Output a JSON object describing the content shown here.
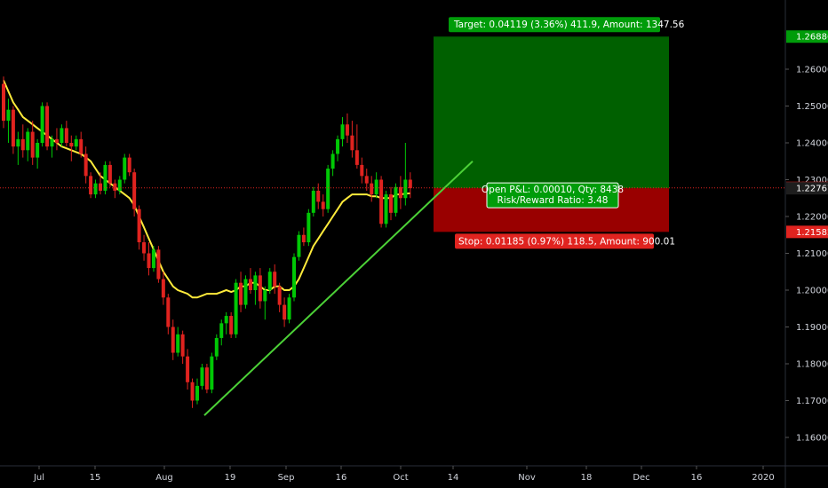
{
  "colors": {
    "background": "#000000",
    "up": "#00c805",
    "down": "#e0231f",
    "ma": "#ffeb3b",
    "trendline": "#4cd137",
    "target_zone": "#006000",
    "stop_zone": "#990000",
    "axis_text": "#d1d4dc",
    "crosshair": "#e0231f"
  },
  "price_axis": {
    "labels": [
      "1.26000",
      "1.25000",
      "1.24000",
      "1.23000",
      "1.22000",
      "1.21000",
      "1.20000",
      "1.19000",
      "1.18000",
      "1.17000",
      "1.16000"
    ],
    "tags": {
      "target": "1.26886",
      "current": "1.22777",
      "entry": "1.22767",
      "stop": "1.21582"
    }
  },
  "time_axis": {
    "labels": [
      "Jul",
      "15",
      "Aug",
      "19",
      "Sep",
      "16",
      "Oct",
      "14",
      "Nov",
      "18",
      "Dec",
      "16",
      "2020"
    ]
  },
  "position": {
    "target_label": "Target: 0.04119 (3.36%) 411.9, Amount: 1347.56",
    "stop_label": "Stop: 0.01185 (0.97%) 118.5, Amount: 900.01",
    "pnl_label": "Open P&L: 0.00010, Qty: 8438",
    "rr_label": "Risk/Reward Ratio: 3.48",
    "entry_price": 1.22767,
    "target_price": 1.26886,
    "stop_price": 1.21582
  },
  "chart_data": {
    "type": "candlestick",
    "series": [
      {
        "name": "",
        "ohlc": [
          [
            1.256,
            1.258,
            1.244,
            1.246
          ],
          [
            1.246,
            1.252,
            1.24,
            1.249
          ],
          [
            1.249,
            1.25,
            1.237,
            1.239
          ],
          [
            1.239,
            1.243,
            1.234,
            1.241
          ],
          [
            1.241,
            1.245,
            1.236,
            1.238
          ],
          [
            1.238,
            1.244,
            1.235,
            1.243
          ],
          [
            1.243,
            1.246,
            1.234,
            1.236
          ],
          [
            1.236,
            1.241,
            1.233,
            1.24
          ],
          [
            1.24,
            1.251,
            1.239,
            1.25
          ],
          [
            1.25,
            1.251,
            1.238,
            1.239
          ],
          [
            1.239,
            1.242,
            1.236,
            1.241
          ],
          [
            1.241,
            1.244,
            1.238,
            1.24
          ],
          [
            1.24,
            1.245,
            1.239,
            1.244
          ],
          [
            1.244,
            1.246,
            1.239,
            1.24
          ],
          [
            1.24,
            1.242,
            1.235,
            1.239
          ],
          [
            1.239,
            1.242,
            1.238,
            1.241
          ],
          [
            1.241,
            1.243,
            1.236,
            1.237
          ],
          [
            1.237,
            1.239,
            1.229,
            1.231
          ],
          [
            1.231,
            1.232,
            1.225,
            1.226
          ],
          [
            1.226,
            1.23,
            1.225,
            1.229
          ],
          [
            1.229,
            1.232,
            1.226,
            1.227
          ],
          [
            1.227,
            1.235,
            1.226,
            1.234
          ],
          [
            1.234,
            1.235,
            1.228,
            1.229
          ],
          [
            1.229,
            1.23,
            1.225,
            1.227
          ],
          [
            1.227,
            1.231,
            1.226,
            1.23
          ],
          [
            1.23,
            1.237,
            1.229,
            1.236
          ],
          [
            1.236,
            1.237,
            1.231,
            1.232
          ],
          [
            1.232,
            1.233,
            1.22,
            1.222
          ],
          [
            1.222,
            1.223,
            1.211,
            1.213
          ],
          [
            1.213,
            1.215,
            1.208,
            1.21
          ],
          [
            1.21,
            1.213,
            1.204,
            1.206
          ],
          [
            1.206,
            1.212,
            1.205,
            1.211
          ],
          [
            1.211,
            1.212,
            1.202,
            1.203
          ],
          [
            1.203,
            1.205,
            1.196,
            1.198
          ],
          [
            1.198,
            1.199,
            1.188,
            1.19
          ],
          [
            1.19,
            1.192,
            1.181,
            1.183
          ],
          [
            1.183,
            1.19,
            1.182,
            1.188
          ],
          [
            1.188,
            1.189,
            1.18,
            1.182
          ],
          [
            1.182,
            1.184,
            1.173,
            1.175
          ],
          [
            1.175,
            1.176,
            1.168,
            1.17
          ],
          [
            1.17,
            1.176,
            1.169,
            1.174
          ],
          [
            1.174,
            1.18,
            1.173,
            1.179
          ],
          [
            1.179,
            1.18,
            1.172,
            1.173
          ],
          [
            1.173,
            1.183,
            1.172,
            1.182
          ],
          [
            1.182,
            1.188,
            1.181,
            1.187
          ],
          [
            1.187,
            1.192,
            1.185,
            1.191
          ],
          [
            1.191,
            1.194,
            1.188,
            1.193
          ],
          [
            1.193,
            1.194,
            1.187,
            1.188
          ],
          [
            1.188,
            1.203,
            1.187,
            1.202
          ],
          [
            1.202,
            1.205,
            1.194,
            1.196
          ],
          [
            1.196,
            1.204,
            1.195,
            1.203
          ],
          [
            1.203,
            1.206,
            1.199,
            1.2
          ],
          [
            1.2,
            1.205,
            1.196,
            1.204
          ],
          [
            1.204,
            1.206,
            1.195,
            1.197
          ],
          [
            1.197,
            1.201,
            1.192,
            1.2
          ],
          [
            1.2,
            1.206,
            1.199,
            1.205
          ],
          [
            1.205,
            1.207,
            1.199,
            1.201
          ],
          [
            1.201,
            1.202,
            1.194,
            1.196
          ],
          [
            1.196,
            1.198,
            1.19,
            1.192
          ],
          [
            1.192,
            1.199,
            1.191,
            1.198
          ],
          [
            1.198,
            1.21,
            1.197,
            1.209
          ],
          [
            1.209,
            1.216,
            1.208,
            1.215
          ],
          [
            1.215,
            1.217,
            1.212,
            1.213
          ],
          [
            1.213,
            1.222,
            1.212,
            1.221
          ],
          [
            1.221,
            1.228,
            1.22,
            1.227
          ],
          [
            1.227,
            1.229,
            1.222,
            1.224
          ],
          [
            1.224,
            1.226,
            1.22,
            1.222
          ],
          [
            1.222,
            1.234,
            1.221,
            1.233
          ],
          [
            1.233,
            1.238,
            1.231,
            1.237
          ],
          [
            1.237,
            1.242,
            1.235,
            1.241
          ],
          [
            1.241,
            1.247,
            1.239,
            1.245
          ],
          [
            1.245,
            1.248,
            1.24,
            1.242
          ],
          [
            1.242,
            1.246,
            1.236,
            1.238
          ],
          [
            1.238,
            1.245,
            1.233,
            1.234
          ],
          [
            1.234,
            1.236,
            1.229,
            1.231
          ],
          [
            1.231,
            1.233,
            1.227,
            1.229
          ],
          [
            1.229,
            1.231,
            1.224,
            1.226
          ],
          [
            1.226,
            1.232,
            1.225,
            1.23
          ],
          [
            1.23,
            1.231,
            1.217,
            1.218
          ],
          [
            1.218,
            1.227,
            1.217,
            1.226
          ],
          [
            1.226,
            1.228,
            1.219,
            1.221
          ],
          [
            1.221,
            1.229,
            1.22,
            1.228
          ],
          [
            1.228,
            1.231,
            1.222,
            1.225
          ],
          [
            1.225,
            1.24,
            1.223,
            1.23
          ],
          [
            1.23,
            1.232,
            1.225,
            1.2277
          ]
        ]
      },
      {
        "name": "",
        "type": "line",
        "values": [
          1.257,
          1.254,
          1.251,
          1.249,
          1.247,
          1.246,
          1.245,
          1.244,
          1.243,
          1.242,
          1.241,
          1.24,
          1.239,
          1.2385,
          1.238,
          1.2375,
          1.237,
          1.236,
          1.235,
          1.233,
          1.231,
          1.23,
          1.229,
          1.228,
          1.227,
          1.226,
          1.225,
          1.223,
          1.22,
          1.217,
          1.214,
          1.211,
          1.208,
          1.205,
          1.203,
          1.201,
          1.2,
          1.1995,
          1.199,
          1.198,
          1.198,
          1.1985,
          1.199,
          1.199,
          1.199,
          1.1995,
          1.2,
          1.1995,
          1.2,
          1.201,
          1.201,
          1.202,
          1.202,
          1.201,
          1.2,
          1.2,
          1.201,
          1.201,
          1.2,
          1.2,
          1.201,
          1.203,
          1.206,
          1.209,
          1.212,
          1.214,
          1.216,
          1.218,
          1.22,
          1.222,
          1.224,
          1.225,
          1.226,
          1.226,
          1.226,
          1.226,
          1.2255,
          1.2255,
          1.225,
          1.225,
          1.225,
          1.226,
          1.226,
          1.2262,
          1.2263
        ]
      }
    ],
    "trendline": [
      [
        1.166,
        1.235
      ]
    ],
    "ylim": [
      1.156,
      1.28
    ]
  }
}
